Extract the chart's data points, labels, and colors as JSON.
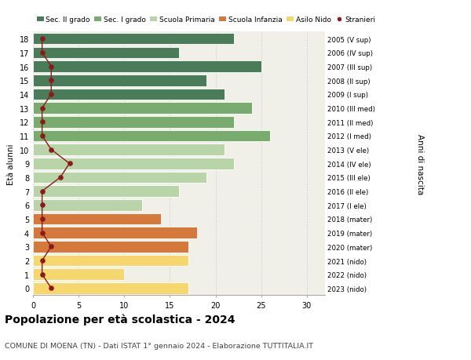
{
  "ages": [
    18,
    17,
    16,
    15,
    14,
    13,
    12,
    11,
    10,
    9,
    8,
    7,
    6,
    5,
    4,
    3,
    2,
    1,
    0
  ],
  "right_labels": [
    "2005 (V sup)",
    "2006 (IV sup)",
    "2007 (III sup)",
    "2008 (II sup)",
    "2009 (I sup)",
    "2010 (III med)",
    "2011 (II med)",
    "2012 (I med)",
    "2013 (V ele)",
    "2014 (IV ele)",
    "2015 (III ele)",
    "2016 (II ele)",
    "2017 (I ele)",
    "2018 (mater)",
    "2019 (mater)",
    "2020 (mater)",
    "2021 (nido)",
    "2022 (nido)",
    "2023 (nido)"
  ],
  "bar_values": [
    22,
    16,
    25,
    19,
    21,
    24,
    22,
    26,
    21,
    22,
    19,
    16,
    12,
    14,
    18,
    17,
    17,
    10,
    17
  ],
  "bar_colors": [
    "#4a7c59",
    "#4a7c59",
    "#4a7c59",
    "#4a7c59",
    "#4a7c59",
    "#7aab6e",
    "#7aab6e",
    "#7aab6e",
    "#b8d4a8",
    "#b8d4a8",
    "#b8d4a8",
    "#b8d4a8",
    "#b8d4a8",
    "#d4793b",
    "#d4793b",
    "#d4793b",
    "#f5d76e",
    "#f5d76e",
    "#f5d76e"
  ],
  "stranieri_values": [
    1,
    1,
    2,
    2,
    2,
    1,
    1,
    1,
    2,
    4,
    3,
    1,
    1,
    1,
    1,
    2,
    1,
    1,
    2
  ],
  "legend_labels": [
    "Sec. II grado",
    "Sec. I grado",
    "Scuola Primaria",
    "Scuola Infanzia",
    "Asilo Nido",
    "Stranieri"
  ],
  "legend_colors": [
    "#4a7c59",
    "#7aab6e",
    "#b8d4a8",
    "#d4793b",
    "#f5d76e",
    "#8b1a1a"
  ],
  "title": "Popolazione per età scolastica - 2024",
  "subtitle": "COMUNE DI MOENA (TN) - Dati ISTAT 1° gennaio 2024 - Elaborazione TUTTITALIA.IT",
  "ylabel_left": "Età alunni",
  "ylabel_right": "Anni di nascita",
  "xlim": [
    0,
    32
  ],
  "xticks": [
    0,
    5,
    10,
    15,
    20,
    25,
    30
  ],
  "background_color": "#ffffff",
  "bar_background": "#f0f0e8",
  "grid_color": "#cccccc",
  "bar_edge_color": "#ffffff",
  "stranieri_line_color": "#8b1a1a",
  "title_fontsize": 10,
  "subtitle_fontsize": 6.8,
  "tick_fontsize": 7,
  "legend_fontsize": 6.5,
  "ylabel_fontsize": 7.5
}
